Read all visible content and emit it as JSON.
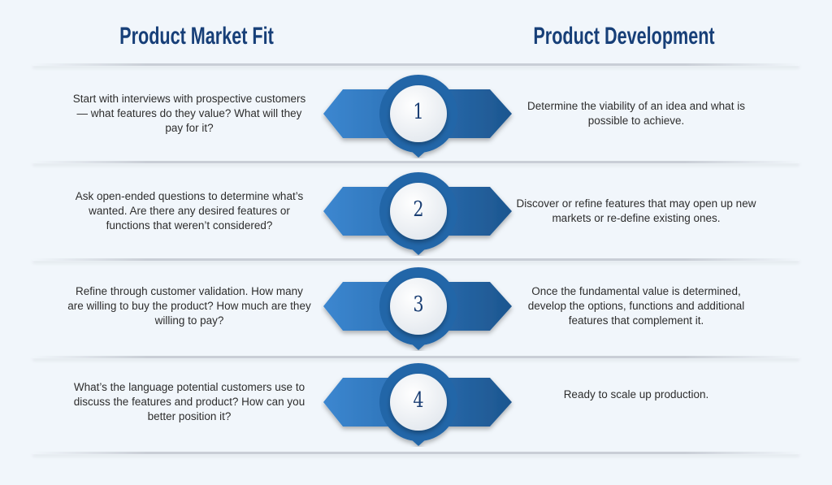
{
  "headers": {
    "left": "Product Market Fit",
    "right": "Product Development"
  },
  "colors": {
    "title": "#173f78",
    "badge_light": "#3c87d0",
    "badge_dark": "#1d568f",
    "text": "#2d2d2d"
  },
  "steps": [
    {
      "number": "1",
      "left": "Start with interviews with prospective customers — what features do they value? What will they pay for it?",
      "right": "Determine the viability of an idea and what is possible to achieve."
    },
    {
      "number": "2",
      "left": "Ask open-ended questions to determine what’s wanted. Are there any desired features or functions that weren’t considered?",
      "right": "Discover or refine features that may open up new markets or re-define existing ones."
    },
    {
      "number": "3",
      "left": "Refine through customer validation. How many are willing to buy the product? How much are they willing to pay?",
      "right": "Once the fundamental value is determined, develop the options, functions and additional features that complement it."
    },
    {
      "number": "4",
      "left": "What’s the language potential customers use to discuss the features and product? How can you better position it?",
      "right": "Ready to scale up production."
    }
  ]
}
